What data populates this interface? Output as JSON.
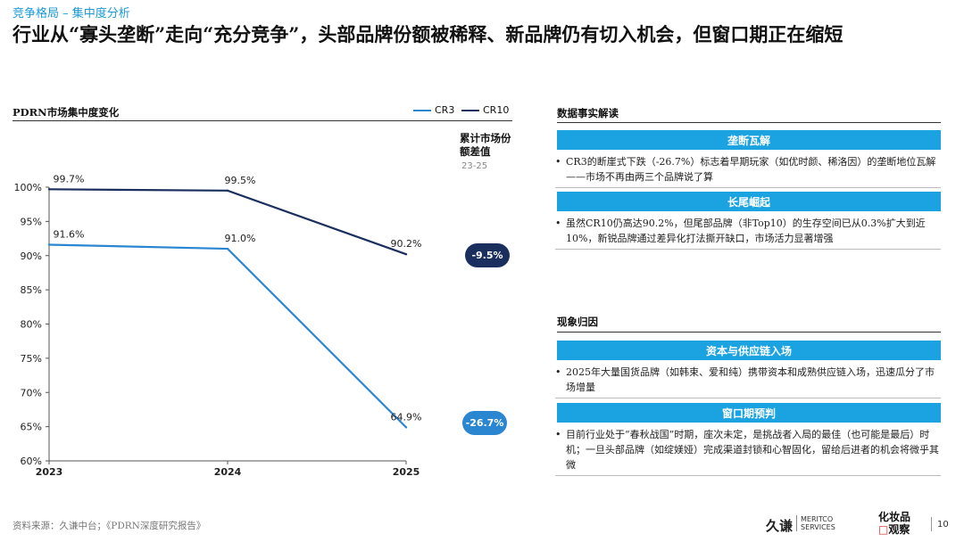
{
  "header": {
    "breadcrumb": "竞争格局 – 集中度分析",
    "title": "行业从“寡头垄断”走向“充分竞争”，头部品牌份额被稀释、新品牌仍有切入机会，但窗口期正在缩短"
  },
  "chart_data": {
    "type": "line",
    "title": "PDRN市场集中度变化",
    "categories": [
      "2023",
      "2024",
      "2025"
    ],
    "series": [
      {
        "name": "CR3",
        "values": [
          91.6,
          91.0,
          64.9
        ],
        "labels": [
          "91.6%",
          "91.0%",
          "64.9%"
        ],
        "color": "#2a86d1"
      },
      {
        "name": "CR10",
        "values": [
          99.7,
          99.5,
          90.2
        ],
        "labels": [
          "99.7%",
          "99.5%",
          "90.2%"
        ],
        "color": "#1b2f5e"
      }
    ],
    "ylim": [
      60,
      100
    ],
    "yticks": [
      100,
      95,
      90,
      85,
      80,
      75,
      70,
      65,
      60
    ],
    "ytick_labels": [
      "100%",
      "95%",
      "90%",
      "85%",
      "80%",
      "75%",
      "70%",
      "65%",
      "60%"
    ],
    "xlabel": "",
    "ylabel": "",
    "legend": "top-right",
    "diff_header": "累计市场份额差值",
    "diff_range": "23-25",
    "diffs": [
      {
        "series": "CR10",
        "label": "-9.5%",
        "color": "#1b2f5e"
      },
      {
        "series": "CR3",
        "label": "-26.7%",
        "color": "#2a86d1"
      }
    ]
  },
  "facts": {
    "title": "数据事实解读",
    "items": [
      {
        "banner": "垄断瓦解",
        "text": "CR3的断崖式下跌（-26.7%）标志着早期玩家（如优时颜、稀洛因）的垄断地位瓦解——市场不再由两三个品牌说了算"
      },
      {
        "banner": "长尾崛起",
        "text": "虽然CR10仍高达90.2%，但尾部品牌（非Top10）的生存空间已从0.3%扩大到近10%，新锐品牌通过差异化打法撕开缺口，市场活力显著增强"
      }
    ]
  },
  "causes": {
    "title": "现象归因",
    "items": [
      {
        "banner": "资本与供应链入场",
        "text": "2025年大量国货品牌（如韩束、爱和纯）携带资本和成熟供应链入场，迅速瓜分了市场增量"
      },
      {
        "banner": "窗口期预判",
        "text": "目前行业处于“春秋战国”时期，座次未定，是挑战者入局的最佳（也可能是最后）时机；一旦头部品牌（如绽媄娅）完成渠道封锁和心智固化，留给后进者的机会将微乎其微"
      }
    ]
  },
  "footer": {
    "source": "资料来源：久谦中台；《PDRN深度研究报告》",
    "logo_jiuqian": "久谦",
    "logo_meritco": "MERITCO SERVICES",
    "logo_hzp_top": "化妆品",
    "logo_hzp_mark": "□",
    "logo_hzp_bottom": "观察",
    "page": "10"
  }
}
